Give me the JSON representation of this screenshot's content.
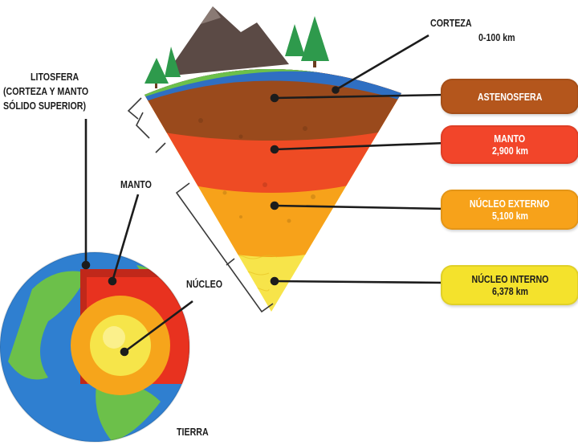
{
  "labels": {
    "corteza": "CORTEZA",
    "corteza_range": "0-100 km",
    "litosfera_line1": "LITOSFERA",
    "litosfera_line2": "(CORTEZA Y MANTO",
    "litosfera_line3": "SÓLIDO SUPERIOR)",
    "manto": "MANTO",
    "nucleo": "NÚCLEO",
    "tierra": "TIERRA"
  },
  "layers": [
    {
      "name": "ASTENOSFERA",
      "depth": "",
      "color": "#b4561c"
    },
    {
      "name": "MANTO",
      "depth": "2,900 km",
      "color": "#f2452a"
    },
    {
      "name": "NÚCLEO EXTERNO",
      "depth": "5,100 km",
      "color": "#f7a21a"
    },
    {
      "name": "NÚCLEO INTERNO",
      "depth": "6,378 km",
      "color": "#f4e22c"
    }
  ],
  "colors": {
    "ocean": "#2f7fd0",
    "land": "#6cc04a",
    "crust_blue": "#1e5fb0",
    "astenosfera": "#9a4a1c",
    "mantle": "#f2452a",
    "outer_core": "#f7a21a",
    "inner_core": "#f6e54a",
    "mountain": "#5b4a45",
    "tree": "#2e9a4c"
  }
}
